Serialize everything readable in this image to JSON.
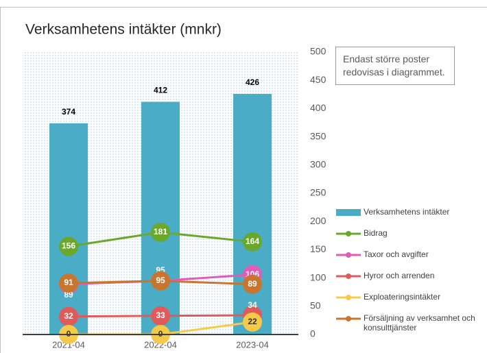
{
  "chart_data": {
    "type": "bar_line",
    "title": "Verksamhetens intäkter (mnkr)",
    "annotation": "Endast större poster redovisas i diagrammet.",
    "categories": [
      "2021-04",
      "2022-04",
      "2023-04"
    ],
    "ylim": [
      0,
      500
    ],
    "yticks": [
      0,
      50,
      100,
      150,
      200,
      250,
      300,
      350,
      400,
      450,
      500
    ],
    "legend": "right",
    "series": [
      {
        "name": "Verksamhetens intäkter",
        "type": "bar",
        "color": "#4bacc6",
        "values": [
          374,
          412,
          426
        ]
      },
      {
        "name": "Bidrag",
        "type": "line",
        "color": "#6aa82c",
        "values": [
          156,
          181,
          164
        ]
      },
      {
        "name": "Taxor och avgifter",
        "type": "line",
        "color": "#e05cb6",
        "values": [
          89,
          95,
          106
        ]
      },
      {
        "name": "Hyror och arrenden",
        "type": "line",
        "color": "#e05a5a",
        "values": [
          32,
          33,
          34
        ]
      },
      {
        "name": "Exploateringsintäkter",
        "type": "line",
        "color": "#f7c948",
        "values": [
          0,
          0,
          22
        ]
      },
      {
        "name": "Försäljning av verksamhet och konsulttjänster",
        "type": "line",
        "color": "#c8752e",
        "values": [
          91,
          95,
          89
        ]
      }
    ]
  }
}
